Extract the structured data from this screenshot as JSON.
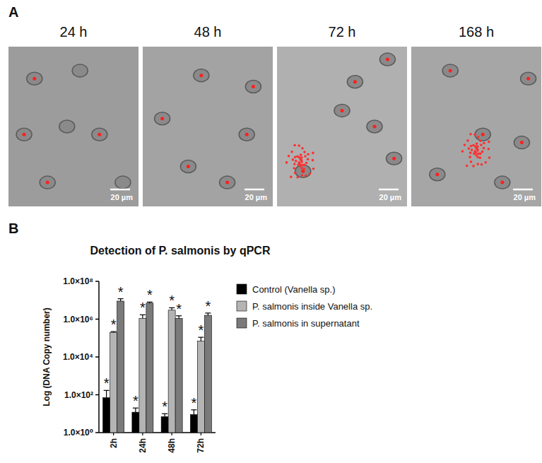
{
  "panel_a": {
    "letter": "A",
    "images": [
      {
        "label": "24 h",
        "scale_bar": "20 µm"
      },
      {
        "label": "48 h",
        "scale_bar": "20 µm"
      },
      {
        "label": "72 h",
        "scale_bar": "20 µm"
      },
      {
        "label": "168 h",
        "scale_bar": "20 µm"
      }
    ]
  },
  "panel_b": {
    "letter": "B"
  },
  "chart_data": {
    "type": "bar",
    "title": "Detection of P. salmonis by qPCR",
    "y_label": "Log (DNA Copy number)",
    "categories": [
      "2h",
      "24h",
      "48h",
      "72h"
    ],
    "log": "y",
    "grid": false,
    "legend": "right",
    "ylim": [
      1,
      100000000
    ],
    "yticks": [
      {
        "value": 1,
        "label": "1.0×10⁰"
      },
      {
        "value": 100,
        "label": "1.0×10²"
      },
      {
        "value": 10000,
        "label": "1.0×10⁴"
      },
      {
        "value": 1000000,
        "label": "1.0×10⁶"
      },
      {
        "value": 100000000,
        "label": "1.0×10⁸"
      }
    ],
    "series": [
      {
        "name": "Control (Vanella sp.)",
        "color": "#000000",
        "values": [
          70,
          12,
          7,
          9
        ],
        "errors": [
          100,
          8,
          3,
          7
        ],
        "annotations": [
          "*",
          "*",
          "*",
          "*"
        ]
      },
      {
        "name": "P. salmonis inside Vanella sp.",
        "color": "#b4b4b4",
        "values": [
          200000,
          1100000,
          3000000,
          70000
        ],
        "errors": [
          20000,
          600000,
          1000000,
          40000
        ],
        "annotations": [
          "*",
          "*",
          "*",
          "*"
        ]
      },
      {
        "name": "P. salmonis in supernatant",
        "color": "#7a7a7a",
        "values": [
          9000000,
          7000000,
          1100000,
          1600000
        ],
        "errors": [
          3000000,
          1000000,
          400000,
          500000
        ],
        "annotations": [
          "*",
          "*",
          "*",
          "*"
        ]
      }
    ]
  }
}
